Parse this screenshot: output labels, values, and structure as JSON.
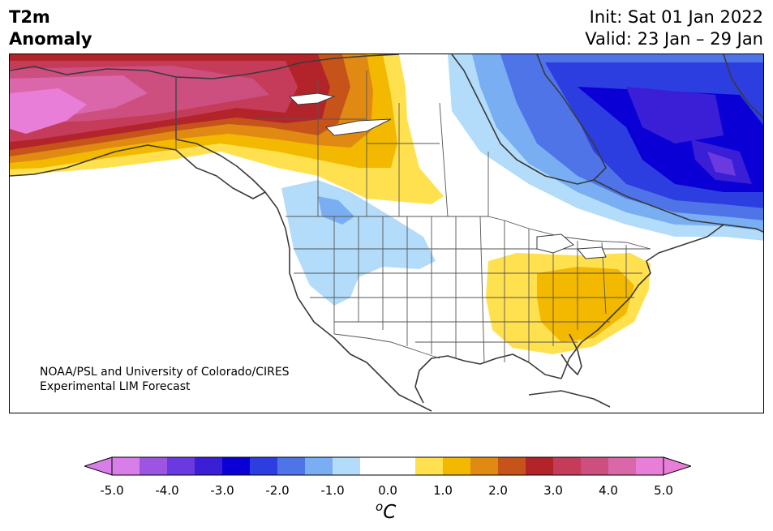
{
  "title": {
    "line1": "T2m",
    "line2": "Anomaly",
    "init": "Init: Sat 01 Jan 2022",
    "valid": "Valid: 23 Jan – 29 Jan"
  },
  "credit": {
    "line1": "NOAA/PSL and University of Colorado/CIRES",
    "line2": "Experimental LIM Forecast"
  },
  "colorbar": {
    "unit_sup": "o",
    "unit_main": "C",
    "ticks": [
      "-5.0",
      "-4.0",
      "-3.0",
      "-2.0",
      "-1.0",
      "0.0",
      "1.0",
      "2.0",
      "3.0",
      "4.0",
      "5.0"
    ],
    "colors": [
      "#d77ee8",
      "#9b55e0",
      "#6a3ae0",
      "#3a1fd6",
      "#0a00d6",
      "#2c3ee0",
      "#4f74e8",
      "#79aef2",
      "#b3dcfa",
      "#ffffff",
      "#ffffff",
      "#ffe150",
      "#f3b800",
      "#e08a14",
      "#c6541a",
      "#b3242a",
      "#c53c5a",
      "#cd4f7f",
      "#d967aa",
      "#e87ed8"
    ],
    "left_extend": "#d77ee8",
    "right_extend": "#e87ed8"
  },
  "map": {
    "land_outline_color": "#3a3a3a",
    "anomalies": {
      "alaska_yukon": "warm 3.0 to 5.0",
      "western_canada": "warm 1.0 to 3.0",
      "southeast_us": "warm 0.5 to 2.0",
      "northwest_us": "cool -0.5 to -1.5",
      "eastern_canada": "cold -1.0 to -4.0"
    }
  }
}
